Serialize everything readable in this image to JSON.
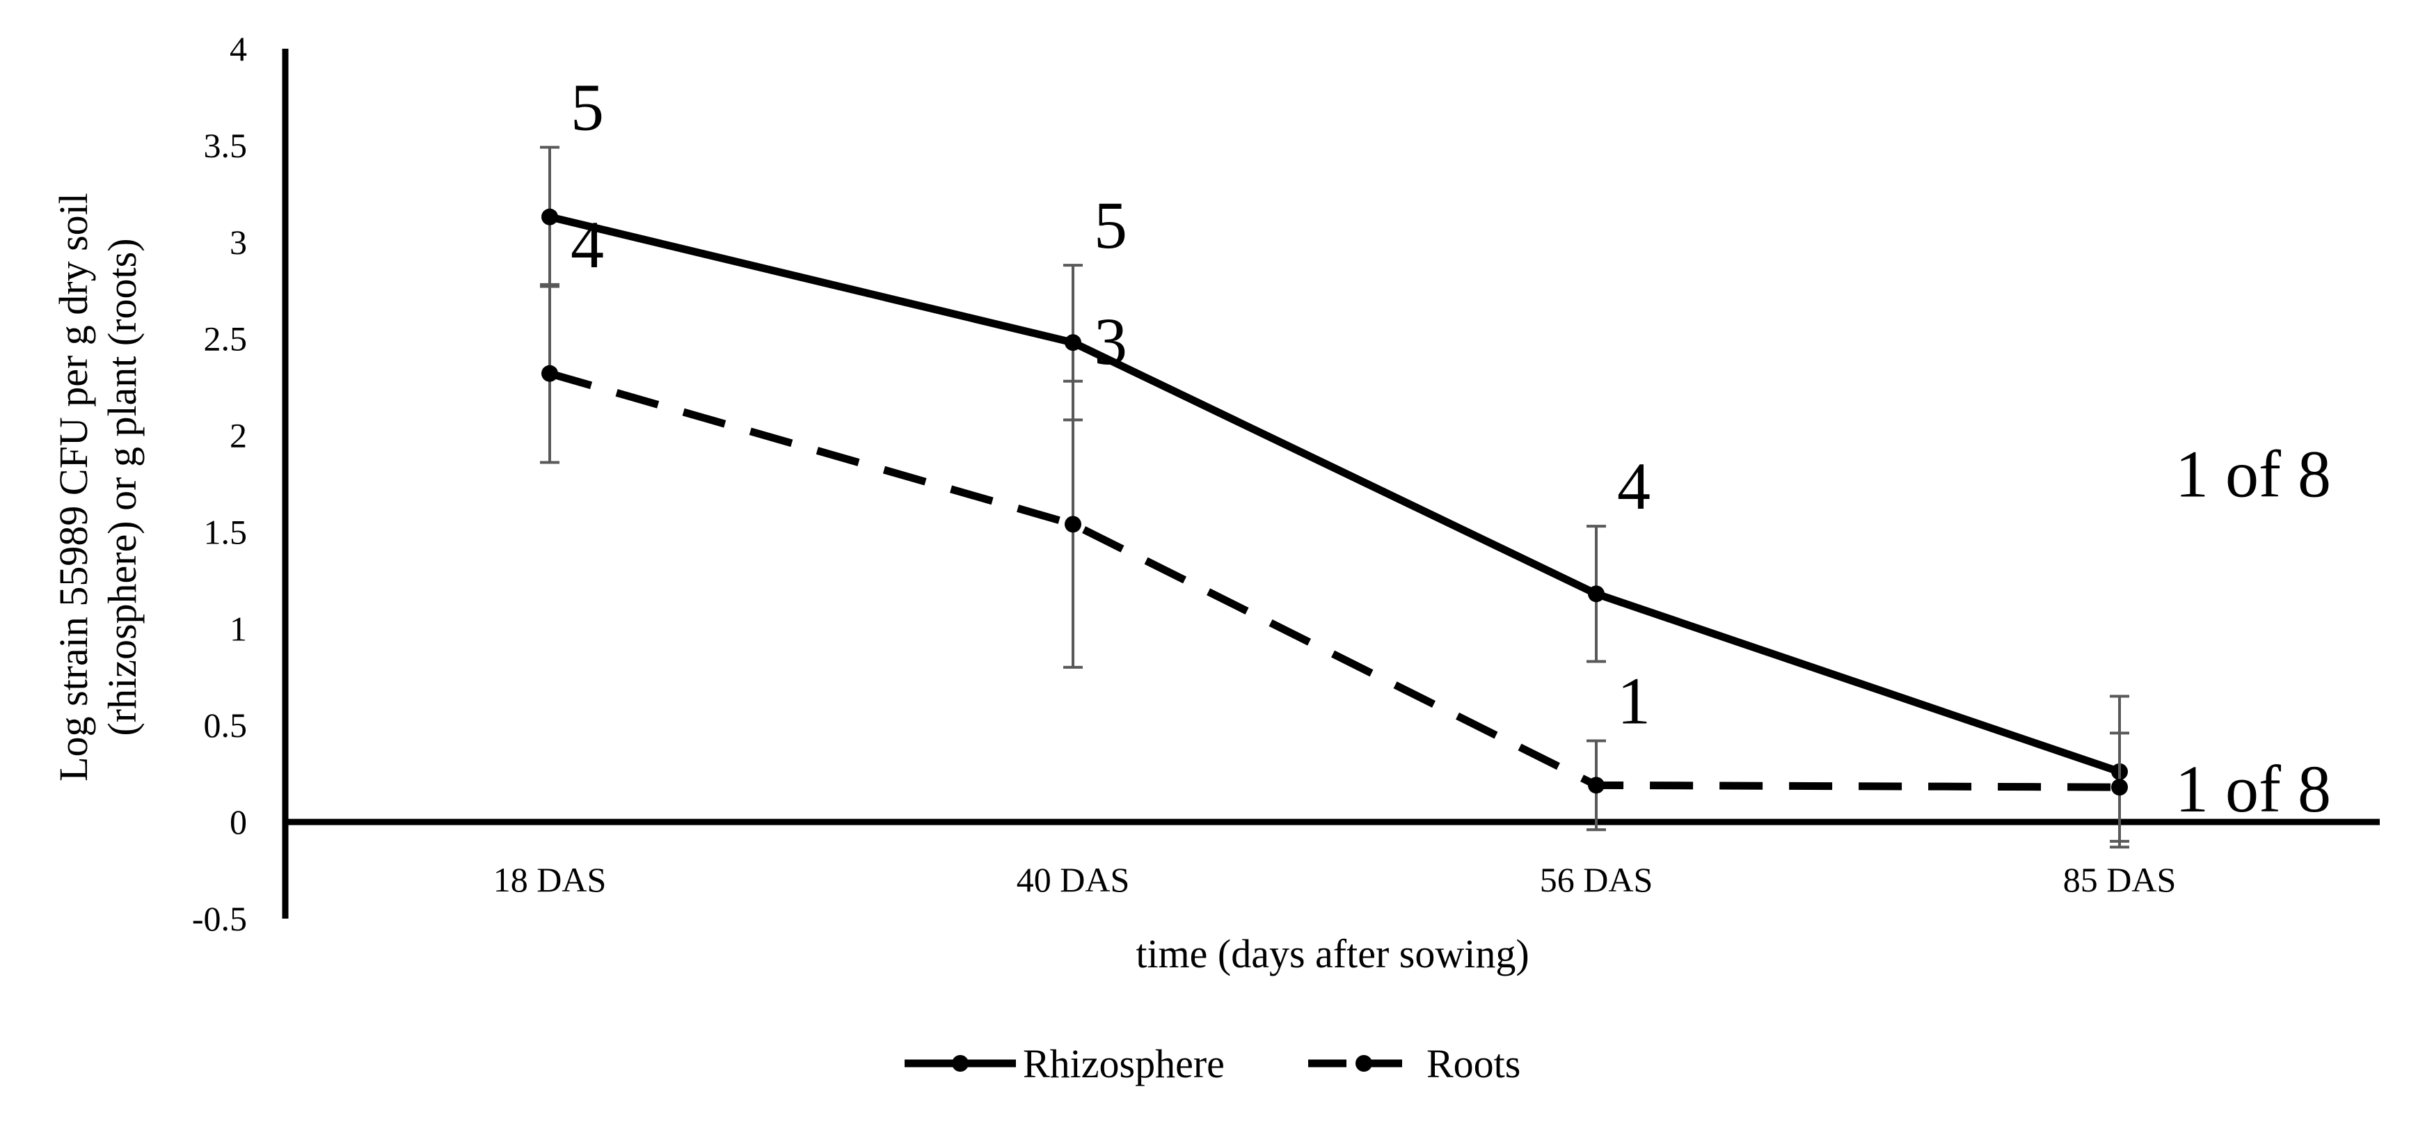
{
  "chart_data": {
    "type": "line",
    "xlabel": "time (days after sowing)",
    "ylabel_lines": [
      "Log strain 55989 CFU per g dry soil",
      "(rhizosphere) or g plant (roots)"
    ],
    "categories": [
      "18 DAS",
      "40 DAS",
      "56 DAS",
      "85 DAS"
    ],
    "ylim": [
      -0.5,
      4
    ],
    "yticks": [
      "-0.5",
      "0",
      "0.5",
      "1",
      "1.5",
      "2",
      "2.5",
      "3",
      "3.5",
      "4"
    ],
    "ytick_values": [
      -0.5,
      0,
      0.5,
      1,
      1.5,
      2,
      2.5,
      3,
      3.5,
      4
    ],
    "grid": false,
    "legend_position": "bottom",
    "series": [
      {
        "name": "Rhizosphere",
        "style": "solid",
        "values": [
          3.13,
          2.48,
          1.18,
          0.26
        ],
        "error": [
          0.36,
          0.4,
          0.35,
          0.39
        ],
        "labels": [
          "5",
          "5",
          "4",
          "1 of 8"
        ]
      },
      {
        "name": "Roots",
        "style": "dashed",
        "values": [
          2.32,
          1.54,
          0.19,
          0.18
        ],
        "error": [
          0.46,
          0.74,
          0.23,
          0.28
        ],
        "labels": [
          "4",
          "3",
          "1",
          "1 of 8"
        ]
      }
    ],
    "colors": {
      "line": "#000000",
      "errorbar": "#595959"
    }
  }
}
